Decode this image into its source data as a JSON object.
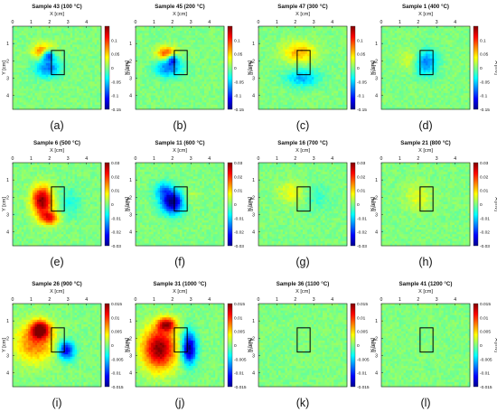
{
  "figure": {
    "x_axis_label": "X [cm]",
    "y_axis_label": "Y [cm]",
    "colorbar_label": "A [mV]",
    "x_ticks": [
      "0",
      "1",
      "2",
      "3",
      "4"
    ],
    "y_ticks": [
      "1",
      "2",
      "3",
      "4"
    ]
  },
  "chart_data": [
    {
      "type": "heatmap",
      "panel_label": "(a)",
      "title": "Sample 43 (100 °C)",
      "xlabel": "X [cm]",
      "ylabel": "Y [cm]",
      "xlim": [
        0,
        4.8
      ],
      "ylim": [
        0,
        4.8
      ],
      "colorbar": {
        "label": "A [mV]",
        "range": [
          -0.15,
          0.15
        ],
        "ticks": [
          "0.1",
          "0.05",
          "0",
          "-0.05",
          "-0.1",
          "-0.15"
        ]
      },
      "features": [
        {
          "x": 1.9,
          "y": 1.65,
          "value": -0.15,
          "sx": 0.35,
          "sy": 0.35
        },
        {
          "x": 1.7,
          "y": 1.5,
          "value": 0.11,
          "sx": 0.55,
          "sy": 0.45
        },
        {
          "x": 1.9,
          "y": 2.4,
          "value": -0.08,
          "sx": 0.7,
          "sy": 0.55
        }
      ],
      "rectangle": {
        "x": [
          2.1,
          2.8
        ],
        "y": [
          1.4,
          2.8
        ]
      }
    },
    {
      "type": "heatmap",
      "panel_label": "(b)",
      "title": "Sample 45 (200 °C)",
      "xlabel": "X [cm]",
      "ylabel": "Y [cm]",
      "xlim": [
        0,
        4.8
      ],
      "ylim": [
        0,
        4.8
      ],
      "colorbar": {
        "label": "A [mV]",
        "range": [
          -0.15,
          0.15
        ],
        "ticks": [
          "0.1",
          "0.05",
          "0",
          "-0.05",
          "-0.1",
          "-0.15"
        ]
      },
      "features": [
        {
          "x": 1.7,
          "y": 1.6,
          "value": 0.1,
          "sx": 0.55,
          "sy": 0.4
        },
        {
          "x": 1.8,
          "y": 2.4,
          "value": -0.08,
          "sx": 0.7,
          "sy": 0.55
        },
        {
          "x": 2.0,
          "y": 1.9,
          "value": -0.1,
          "sx": 0.3,
          "sy": 0.3
        }
      ],
      "rectangle": {
        "x": [
          2.1,
          2.8
        ],
        "y": [
          1.4,
          2.8
        ]
      }
    },
    {
      "type": "heatmap",
      "panel_label": "(c)",
      "title": "Sample 47 (300 °C)",
      "xlabel": "X [cm]",
      "ylabel": "Y [cm]",
      "xlim": [
        0,
        4.8
      ],
      "ylim": [
        0,
        4.8
      ],
      "colorbar": {
        "label": "A [mV]",
        "range": [
          -0.15,
          0.15
        ],
        "ticks": [
          "0.1",
          "0.05",
          "0",
          "-0.05",
          "-0.1",
          "-0.15"
        ]
      },
      "features": [
        {
          "x": 2.2,
          "y": 1.5,
          "value": 0.06,
          "sx": 0.9,
          "sy": 0.6
        },
        {
          "x": 2.4,
          "y": 3.0,
          "value": -0.06,
          "sx": 0.9,
          "sy": 0.5
        }
      ],
      "rectangle": {
        "x": [
          2.1,
          2.8
        ],
        "y": [
          1.4,
          2.8
        ]
      }
    },
    {
      "type": "heatmap",
      "panel_label": "(d)",
      "title": "Sample 1 (400 °C)",
      "xlabel": "X [cm]",
      "ylabel": "Y [cm]",
      "xlim": [
        0,
        4.8
      ],
      "ylim": [
        0,
        4.8
      ],
      "colorbar": {
        "label": "A [mV]",
        "range": [
          -0.15,
          0.15
        ],
        "ticks": [
          "0.1",
          "0.05",
          "0",
          "-0.05",
          "-0.1",
          "-0.15"
        ]
      },
      "features": [
        {
          "x": 2.4,
          "y": 2.1,
          "value": -0.08,
          "sx": 0.6,
          "sy": 0.7
        },
        {
          "x": 1.6,
          "y": 1.9,
          "value": 0.03,
          "sx": 0.6,
          "sy": 0.6
        }
      ],
      "rectangle": {
        "x": [
          2.1,
          2.8
        ],
        "y": [
          1.4,
          2.8
        ]
      }
    },
    {
      "type": "heatmap",
      "panel_label": "(e)",
      "title": "Sample 6 (500 °C)",
      "xlabel": "X [cm]",
      "ylabel": "Y [cm]",
      "xlim": [
        0,
        4.8
      ],
      "ylim": [
        0,
        4.8
      ],
      "colorbar": {
        "label": "A [mV]",
        "range": [
          -0.03,
          0.03
        ],
        "ticks": [
          "0.03",
          "0.02",
          "0.01",
          "0",
          "-0.01",
          "-0.02",
          "-0.03"
        ]
      },
      "features": [
        {
          "x": 1.6,
          "y": 2.2,
          "value": 0.03,
          "sx": 0.55,
          "sy": 0.8
        },
        {
          "x": 2.0,
          "y": 3.2,
          "value": 0.02,
          "sx": 0.5,
          "sy": 0.4
        },
        {
          "x": 3.1,
          "y": 2.3,
          "value": -0.006,
          "sx": 0.6,
          "sy": 0.8
        }
      ],
      "rectangle": {
        "x": [
          2.1,
          2.8
        ],
        "y": [
          1.4,
          2.8
        ]
      }
    },
    {
      "type": "heatmap",
      "panel_label": "(f)",
      "title": "Sample 11 (600 °C)",
      "xlabel": "X [cm]",
      "ylabel": "Y [cm]",
      "xlim": [
        0,
        4.8
      ],
      "ylim": [
        0,
        4.8
      ],
      "colorbar": {
        "label": "A [mV]",
        "range": [
          -0.03,
          0.03
        ],
        "ticks": [
          "0.03",
          "0.02",
          "0.01",
          "0",
          "-0.01",
          "-0.02",
          "-0.03"
        ]
      },
      "features": [
        {
          "x": 2.0,
          "y": 2.3,
          "value": -0.03,
          "sx": 0.6,
          "sy": 0.65
        },
        {
          "x": 1.5,
          "y": 1.6,
          "value": -0.012,
          "sx": 0.5,
          "sy": 0.5
        },
        {
          "x": 2.9,
          "y": 2.0,
          "value": 0.004,
          "sx": 0.5,
          "sy": 0.5
        }
      ],
      "rectangle": {
        "x": [
          2.1,
          2.8
        ],
        "y": [
          1.4,
          2.8
        ]
      }
    },
    {
      "type": "heatmap",
      "panel_label": "(g)",
      "title": "Sample 16 (700 °C)",
      "xlabel": "X [cm]",
      "ylabel": "Y [cm]",
      "xlim": [
        0,
        4.8
      ],
      "ylim": [
        0,
        4.8
      ],
      "colorbar": {
        "label": "A [mV]",
        "range": [
          -0.03,
          0.03
        ],
        "ticks": [
          "0.03",
          "0.02",
          "0.01",
          "0",
          "-0.01",
          "-0.02",
          "-0.03"
        ]
      },
      "features": [
        {
          "x": 1.8,
          "y": 1.7,
          "value": 0.007,
          "sx": 0.7,
          "sy": 0.6
        },
        {
          "x": 3.2,
          "y": 2.0,
          "value": -0.004,
          "sx": 0.7,
          "sy": 0.8
        }
      ],
      "rectangle": {
        "x": [
          2.1,
          2.8
        ],
        "y": [
          1.4,
          2.8
        ]
      }
    },
    {
      "type": "heatmap",
      "panel_label": "(h)",
      "title": "Sample 21 (800 °C)",
      "xlabel": "X [cm]",
      "ylabel": "Y [cm]",
      "xlim": [
        0,
        4.8
      ],
      "ylim": [
        0,
        4.8
      ],
      "colorbar": {
        "label": "A [mV]",
        "range": [
          -0.03,
          0.03
        ],
        "ticks": [
          "0.03",
          "0.02",
          "0.01",
          "0",
          "-0.01",
          "-0.02",
          "-0.03"
        ]
      },
      "features": [
        {
          "x": 2.0,
          "y": 2.0,
          "value": 0.006,
          "sx": 0.7,
          "sy": 0.8
        }
      ],
      "rectangle": {
        "x": [
          2.1,
          2.8
        ],
        "y": [
          1.4,
          2.8
        ]
      }
    },
    {
      "type": "heatmap",
      "panel_label": "(i)",
      "title": "Sample 26 (900 °C)",
      "xlabel": "X [cm]",
      "ylabel": "Y [cm]",
      "xlim": [
        0,
        4.8
      ],
      "ylim": [
        0,
        4.8
      ],
      "colorbar": {
        "label": "A [mV]",
        "range": [
          -0.015,
          0.015
        ],
        "ticks": [
          "0.015",
          "0.01",
          "0.005",
          "0",
          "-0.005",
          "-0.01",
          "-0.015"
        ]
      },
      "features": [
        {
          "x": 1.5,
          "y": 1.5,
          "value": 0.015,
          "sx": 0.5,
          "sy": 0.5
        },
        {
          "x": 1.2,
          "y": 2.3,
          "value": 0.008,
          "sx": 1.1,
          "sy": 1.1
        },
        {
          "x": 2.9,
          "y": 2.7,
          "value": -0.012,
          "sx": 0.45,
          "sy": 0.55
        }
      ],
      "rectangle": {
        "x": [
          2.1,
          2.8
        ],
        "y": [
          1.4,
          2.8
        ]
      }
    },
    {
      "type": "heatmap",
      "panel_label": "(j)",
      "title": "Sample 31 (1000 °C)",
      "xlabel": "X [cm]",
      "ylabel": "Y [cm]",
      "xlim": [
        0,
        4.8
      ],
      "ylim": [
        0,
        4.8
      ],
      "colorbar": {
        "label": "A [mV]",
        "range": [
          -0.015,
          0.015
        ],
        "ticks": [
          "0.015",
          "0.01",
          "0.005",
          "0",
          "-0.005",
          "-0.01",
          "-0.015"
        ]
      },
      "features": [
        {
          "x": 1.3,
          "y": 2.6,
          "value": 0.015,
          "sx": 0.9,
          "sy": 1.2
        },
        {
          "x": 1.7,
          "y": 1.2,
          "value": 0.012,
          "sx": 0.5,
          "sy": 0.4
        },
        {
          "x": 2.9,
          "y": 2.6,
          "value": -0.015,
          "sx": 0.4,
          "sy": 0.9
        }
      ],
      "rectangle": {
        "x": [
          2.1,
          2.8
        ],
        "y": [
          1.4,
          2.8
        ]
      }
    },
    {
      "type": "heatmap",
      "panel_label": "(k)",
      "title": "Sample 36 (1100 °C)",
      "xlabel": "X [cm]",
      "ylabel": "Y [cm]",
      "xlim": [
        0,
        4.8
      ],
      "ylim": [
        0,
        4.8
      ],
      "colorbar": {
        "label": "A [mV]",
        "range": [
          -0.015,
          0.015
        ],
        "ticks": [
          "0.015",
          "0.01",
          "0.005",
          "0",
          "-0.005",
          "-0.01",
          "-0.015"
        ]
      },
      "features": [],
      "rectangle": {
        "x": [
          2.1,
          2.8
        ],
        "y": [
          1.4,
          2.8
        ]
      }
    },
    {
      "type": "heatmap",
      "panel_label": "(l)",
      "title": "Sample 41 (1200 °C)",
      "xlabel": "X [cm]",
      "ylabel": "Y [cm]",
      "xlim": [
        0,
        4.8
      ],
      "ylim": [
        0,
        4.8
      ],
      "colorbar": {
        "label": "A [mV]",
        "range": [
          -0.015,
          0.015
        ],
        "ticks": [
          "0.015",
          "0.01",
          "0.005",
          "0",
          "-0.005",
          "-0.01",
          "-0.015"
        ]
      },
      "features": [],
      "rectangle": {
        "x": [
          2.1,
          2.8
        ],
        "y": [
          1.4,
          2.8
        ]
      }
    }
  ]
}
